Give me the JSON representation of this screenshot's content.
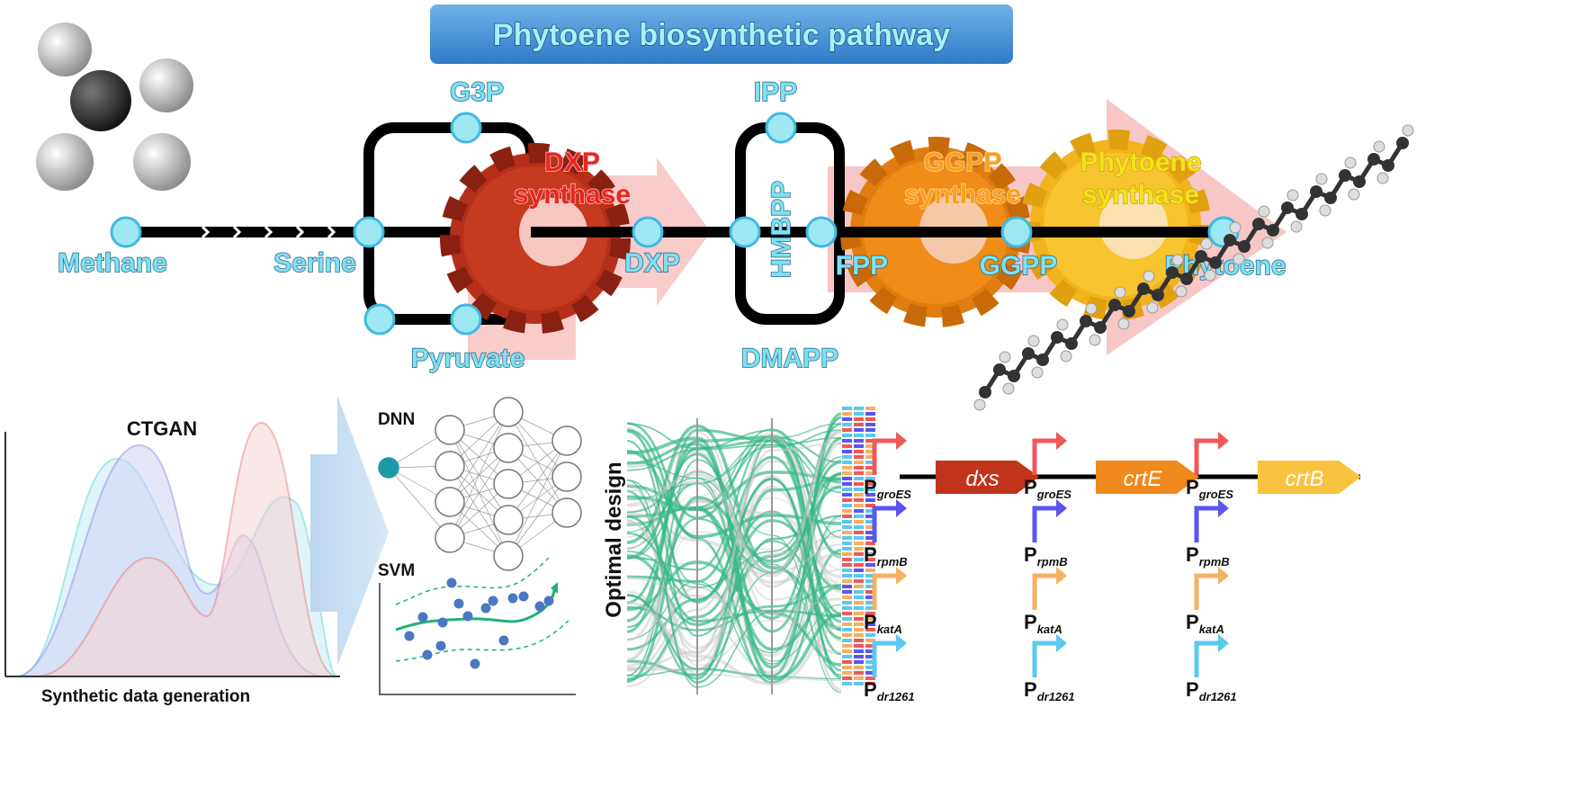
{
  "title": "Phytoene biosynthetic pathway",
  "pathway": {
    "metabolites": {
      "methane": "Methane",
      "serine": "Serine",
      "g3p": "G3P",
      "pyruvate": "Pyruvate",
      "dxp": "DXP",
      "ipp": "IPP",
      "hmbpp": "HMBPP",
      "dmapp": "DMAPP",
      "fpp": "FPP",
      "ggpp": "GGPP",
      "phytoene": "Phytoene"
    },
    "enzymes": [
      {
        "line1": "DXP",
        "line2": "synthase",
        "color": "#e8271f"
      },
      {
        "line1": "GGPP",
        "line2": "synthase",
        "color": "#f7a21a"
      },
      {
        "line1": "Phytoene",
        "line2": "synthase",
        "color": "#f5e21a"
      }
    ]
  },
  "ctgan": {
    "title": "CTGAN",
    "caption": "Synthetic data generation"
  },
  "models": {
    "dnn": "DNN",
    "svm": "SVM"
  },
  "optimal_design": {
    "label": "Optimal design"
  },
  "construct": {
    "genes": [
      {
        "name": "dxs",
        "color": "#c1331b"
      },
      {
        "name": "crtE",
        "color": "#f08a1d"
      },
      {
        "name": "crtB",
        "color": "#f9c340"
      }
    ],
    "promoter_prefix": "P",
    "promoters": [
      {
        "name": "groES",
        "color": "#f05858"
      },
      {
        "name": "rpmB",
        "color": "#5a55f0"
      },
      {
        "name": "katA",
        "color": "#f6b060"
      },
      {
        "name": "dr1261",
        "color": "#5ac8f0"
      }
    ]
  }
}
